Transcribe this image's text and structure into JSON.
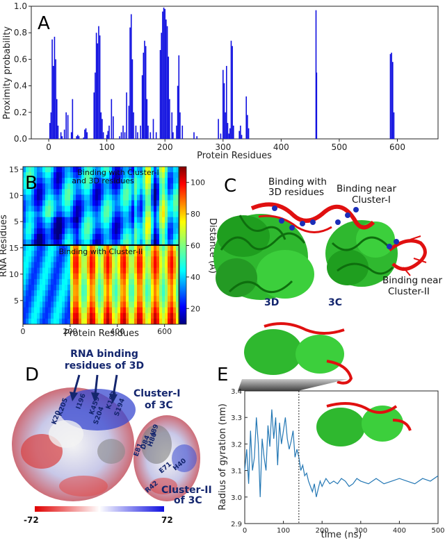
{
  "panels": {
    "A": {
      "letter": "A"
    },
    "B": {
      "letter": "B"
    },
    "C": {
      "letter": "C"
    },
    "D": {
      "letter": "D"
    },
    "E": {
      "letter": "E"
    }
  },
  "chart_data": [
    {
      "id": "A",
      "type": "bar",
      "xlabel": "Protein Residues",
      "ylabel": "Proximity probability",
      "xlim": [
        -30,
        670
      ],
      "ylim": [
        0,
        1.0
      ],
      "xticks": [
        0,
        100,
        200,
        300,
        400,
        500,
        600
      ],
      "yticks": [
        0.0,
        0.2,
        0.4,
        0.6,
        0.8,
        1.0
      ],
      "ytick_labels": [
        "0.0",
        "0.2",
        "0.4",
        "0.6",
        "0.8",
        "1.0"
      ],
      "color": "#1010e0",
      "x": [
        2,
        4,
        6,
        8,
        10,
        12,
        14,
        16,
        21,
        23,
        27,
        30,
        33,
        39,
        41,
        48,
        50,
        52,
        60,
        62,
        64,
        66,
        78,
        80,
        82,
        84,
        86,
        88,
        90,
        92,
        94,
        100,
        102,
        104,
        108,
        111,
        122,
        125,
        128,
        131,
        134,
        138,
        140,
        142,
        144,
        146,
        150,
        153,
        158,
        161,
        163,
        165,
        167,
        169,
        171,
        175,
        180,
        185,
        192,
        194,
        196,
        198,
        200,
        202,
        204,
        206,
        208,
        212,
        214,
        220,
        222,
        224,
        226,
        230,
        250,
        255,
        292,
        296,
        300,
        302,
        304,
        306,
        308,
        310,
        312,
        314,
        316,
        318,
        328,
        330,
        332,
        340,
        342,
        344,
        460,
        461,
        588,
        590,
        592,
        594
      ],
      "values": [
        0.12,
        0.2,
        0.75,
        0.55,
        0.77,
        0.6,
        0.3,
        0.1,
        0.05,
        0.02,
        0.07,
        0.2,
        0.18,
        0.05,
        0.3,
        0.02,
        0.03,
        0.02,
        0.01,
        0.07,
        0.08,
        0.05,
        0.35,
        0.5,
        0.8,
        0.72,
        0.85,
        0.78,
        0.2,
        0.15,
        0.05,
        0.03,
        0.06,
        0.1,
        0.3,
        0.17,
        0.02,
        0.05,
        0.1,
        0.05,
        0.35,
        0.25,
        0.84,
        0.94,
        0.6,
        0.2,
        0.1,
        0.05,
        0.1,
        0.48,
        0.65,
        0.74,
        0.7,
        0.3,
        0.1,
        0.05,
        0.15,
        0.05,
        0.67,
        0.8,
        0.96,
        0.99,
        0.98,
        0.9,
        0.85,
        0.62,
        0.3,
        0.2,
        0.05,
        0.1,
        0.4,
        0.63,
        0.2,
        0.1,
        0.05,
        0.02,
        0.15,
        0.04,
        0.52,
        0.42,
        0.2,
        0.55,
        0.12,
        0.04,
        0.08,
        0.74,
        0.7,
        0.1,
        0.06,
        0.1,
        0.03,
        0.32,
        0.18,
        0.08,
        0.97,
        0.5,
        0.64,
        0.65,
        0.58,
        0.2
      ]
    },
    {
      "id": "B",
      "type": "heatmap",
      "xlabel": "Protein Residues",
      "ylabel": "RNA Residues",
      "colorbar_label": "Distance (Å)",
      "colorbar_ticks": [
        20,
        40,
        60,
        80,
        100
      ],
      "vmin": 10,
      "vmax": 110,
      "xticks": [
        0,
        200,
        400,
        600
      ],
      "top_yticks": [
        5,
        10,
        15
      ],
      "bottom_yticks": [
        5,
        10,
        15
      ],
      "region_labels": [
        "Binding with Cluster-I and 3D residues",
        "Binding with Cluster-II"
      ]
    },
    {
      "id": "E",
      "type": "line",
      "xlabel": "time (ns)",
      "ylabel": "Radius of gyration (nm)",
      "xlim": [
        0,
        500
      ],
      "ylim": [
        2.9,
        3.4
      ],
      "xticks": [
        0,
        100,
        200,
        300,
        400,
        500
      ],
      "yticks": [
        2.9,
        3.0,
        3.1,
        3.2,
        3.3,
        3.4
      ],
      "ytick_labels": [
        "2.9",
        "3.0",
        "3.1",
        "3.2",
        "3.3",
        "3.4"
      ],
      "marker_line_x": 140,
      "color": "#2377b4",
      "x": [
        0,
        5,
        10,
        15,
        20,
        25,
        30,
        35,
        40,
        45,
        50,
        55,
        60,
        65,
        70,
        75,
        80,
        85,
        90,
        95,
        100,
        105,
        110,
        115,
        120,
        125,
        130,
        135,
        140,
        145,
        150,
        155,
        160,
        165,
        170,
        175,
        180,
        185,
        190,
        195,
        200,
        210,
        220,
        230,
        240,
        250,
        260,
        270,
        280,
        290,
        300,
        320,
        340,
        360,
        380,
        400,
        420,
        440,
        460,
        480,
        500
      ],
      "y": [
        3.1,
        3.18,
        3.05,
        3.25,
        3.1,
        3.15,
        3.3,
        3.2,
        3.0,
        3.22,
        3.15,
        3.1,
        3.27,
        3.19,
        3.33,
        3.22,
        3.3,
        3.12,
        3.28,
        3.2,
        3.25,
        3.3,
        3.22,
        3.18,
        3.21,
        3.25,
        3.15,
        3.18,
        3.15,
        3.1,
        3.12,
        3.08,
        3.09,
        3.06,
        3.04,
        3.02,
        3.05,
        3.0,
        3.03,
        3.06,
        3.04,
        3.07,
        3.05,
        3.06,
        3.05,
        3.07,
        3.06,
        3.04,
        3.05,
        3.07,
        3.06,
        3.05,
        3.07,
        3.05,
        3.06,
        3.07,
        3.06,
        3.05,
        3.07,
        3.06,
        3.08
      ]
    }
  ],
  "panelC": {
    "label_3d_residues": "Binding with 3D residues",
    "label_3d_line1": "Binding with",
    "label_3d_line2": "3D residues",
    "label_cluster1_line1": "Binding near",
    "label_cluster1_line2": "Cluster-I",
    "label_cluster2_line1": "Binding near",
    "label_cluster2_line2": "Cluster-II",
    "label_3d": "3D",
    "label_3c": "3C"
  },
  "panelD": {
    "title_line1": "RNA binding",
    "title_line2": "residues of 3D",
    "cluster1_line1": "Cluster-I",
    "cluster1_line2": "of 3C",
    "cluster2_line1": "Cluster-II",
    "cluster2_line2": "of 3C",
    "residues": [
      "K205",
      "K20",
      "I196",
      "K459",
      "S204",
      "K193",
      "S194",
      "E81",
      "H80",
      "E71",
      "H40",
      "R42",
      "D84",
      "I89"
    ],
    "colorbar_min": "-72",
    "colorbar_max": "72"
  }
}
